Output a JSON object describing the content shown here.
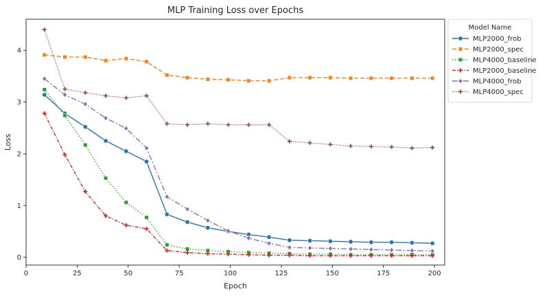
{
  "chart_data": {
    "type": "line",
    "title": "MLP Training Loss over Epochs",
    "xlabel": "Epoch",
    "ylabel": "Loss",
    "xlim": [
      0,
      205
    ],
    "ylim": [
      -0.15,
      4.6
    ],
    "xticks": [
      0,
      25,
      50,
      75,
      100,
      125,
      150,
      175,
      200
    ],
    "yticks": [
      0,
      1,
      2,
      3,
      4
    ],
    "grid": false,
    "legend": {
      "title": "Model Name",
      "placement": "upper right, outside plot"
    },
    "x": [
      9,
      19,
      29,
      39,
      49,
      59,
      69,
      79,
      89,
      99,
      109,
      119,
      129,
      139,
      149,
      159,
      169,
      179,
      189,
      199
    ],
    "series": [
      {
        "name": "MLP2000_frob",
        "color": "#1f77b4",
        "marker": "circle",
        "dash": "solid",
        "values": [
          3.14,
          2.78,
          2.52,
          2.25,
          2.05,
          1.85,
          0.83,
          0.68,
          0.57,
          0.5,
          0.44,
          0.39,
          0.33,
          0.32,
          0.31,
          0.3,
          0.29,
          0.29,
          0.28,
          0.27
        ]
      },
      {
        "name": "MLP2000_spec",
        "color": "#ff7f0e",
        "marker": "square",
        "dash": "dashed",
        "values": [
          3.91,
          3.87,
          3.87,
          3.8,
          3.84,
          3.78,
          3.52,
          3.47,
          3.44,
          3.43,
          3.41,
          3.41,
          3.47,
          3.47,
          3.47,
          3.46,
          3.46,
          3.46,
          3.46,
          3.46
        ]
      },
      {
        "name": "MLP4000_baseline",
        "color": "#2ca02c",
        "marker": "square",
        "dash": "dotted",
        "values": [
          3.24,
          2.74,
          2.17,
          1.53,
          1.06,
          0.77,
          0.24,
          0.16,
          0.13,
          0.11,
          0.09,
          0.08,
          0.07,
          0.06,
          0.06,
          0.05,
          0.05,
          0.05,
          0.05,
          0.05
        ]
      },
      {
        "name": "MLP2000_baseline",
        "color": "#d62728",
        "marker": "plus",
        "dash": "dashdot",
        "values": [
          2.78,
          1.98,
          1.27,
          0.8,
          0.62,
          0.55,
          0.13,
          0.09,
          0.07,
          0.06,
          0.05,
          0.04,
          0.04,
          0.03,
          0.03,
          0.03,
          0.03,
          0.03,
          0.03,
          0.03
        ]
      },
      {
        "name": "MLP4000_frob",
        "color": "#9467bd",
        "marker": "diamond",
        "dash": "dashdotlong",
        "values": [
          3.45,
          3.14,
          2.96,
          2.69,
          2.49,
          2.11,
          1.17,
          0.93,
          0.71,
          0.51,
          0.37,
          0.27,
          0.19,
          0.18,
          0.17,
          0.16,
          0.15,
          0.14,
          0.13,
          0.12
        ]
      },
      {
        "name": "MLP4000_spec",
        "color": "#8c564b",
        "marker": "plus",
        "dash": "densedot",
        "values": [
          4.4,
          3.25,
          3.18,
          3.12,
          3.08,
          3.12,
          2.58,
          2.56,
          2.58,
          2.56,
          2.56,
          2.56,
          2.24,
          2.21,
          2.18,
          2.15,
          2.14,
          2.13,
          2.11,
          2.12
        ]
      }
    ]
  }
}
